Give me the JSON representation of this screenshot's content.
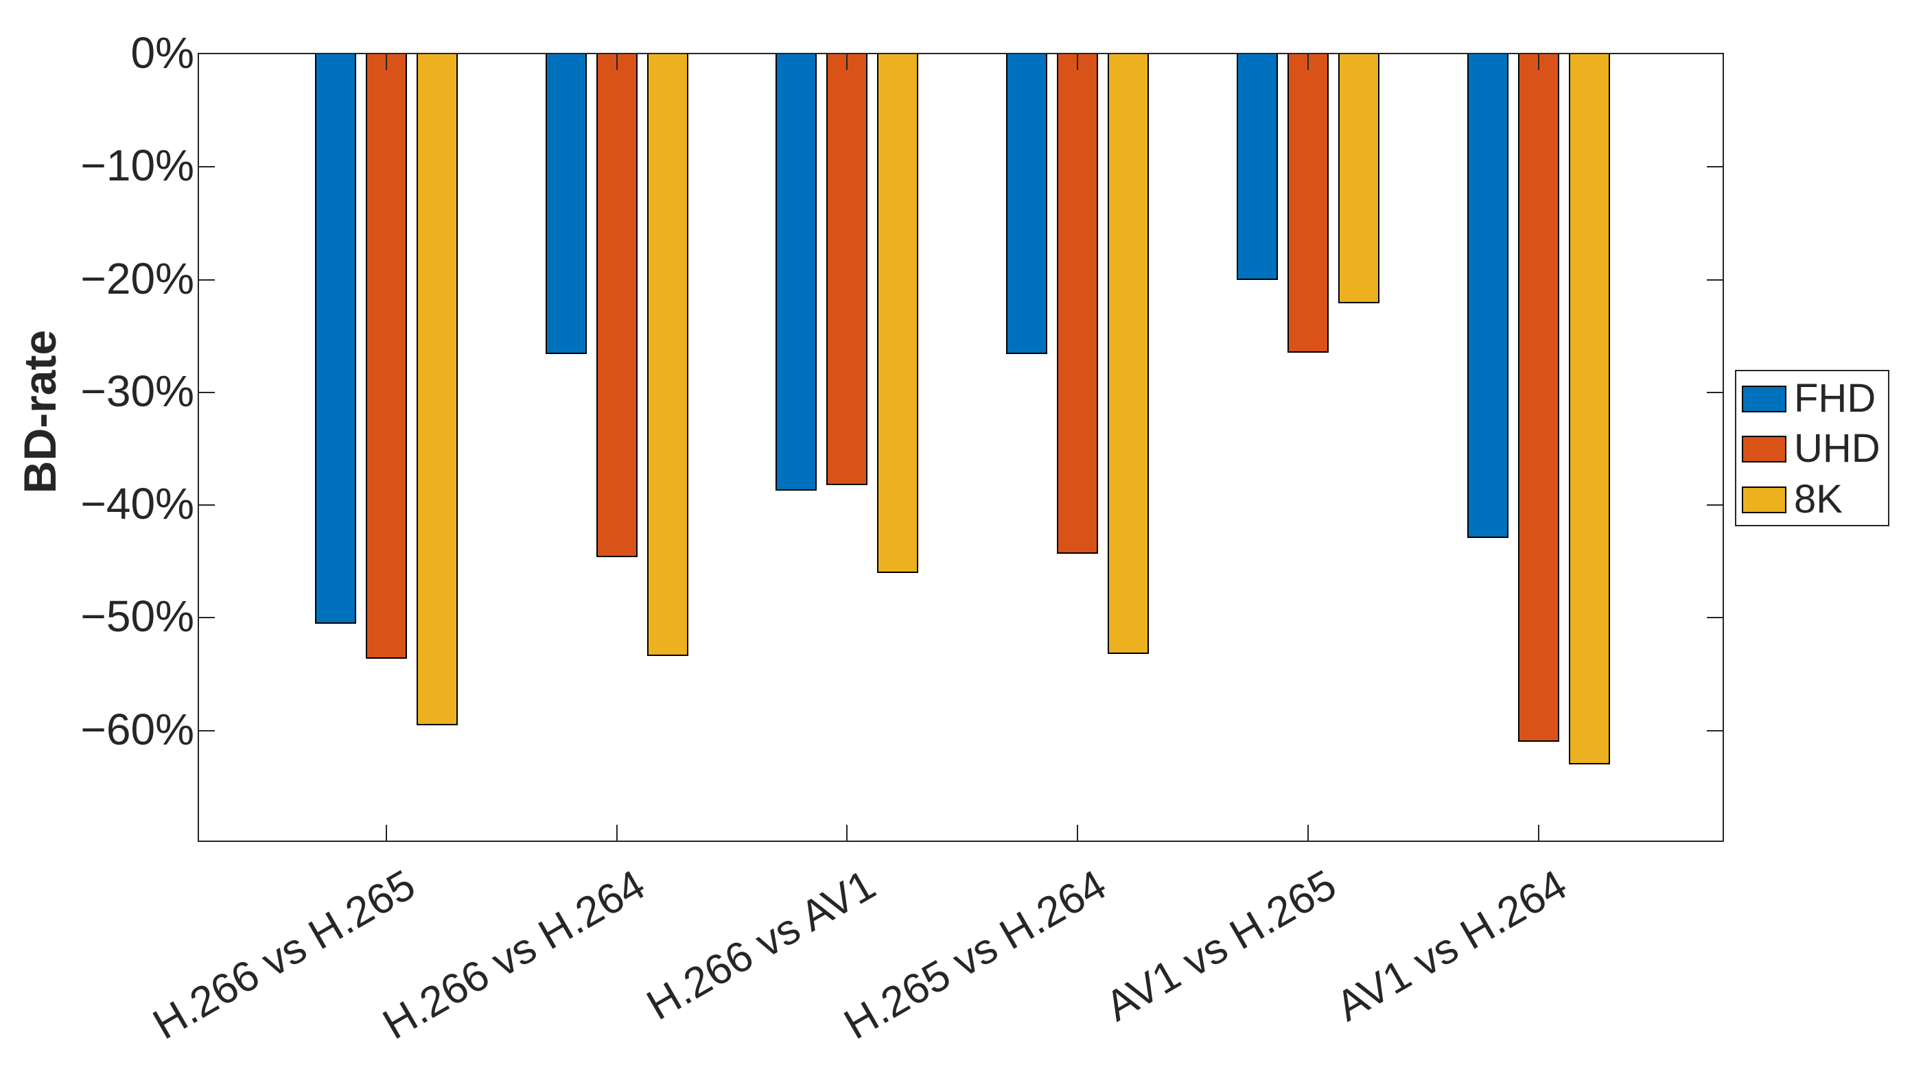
{
  "chart_data": {
    "type": "bar",
    "title": "",
    "ylabel": "BD-rate",
    "xlabel": "",
    "categories": [
      "H.266 vs H.265",
      "H.266 vs H.264",
      "H.266 vs AV1",
      "H.265 vs H.264",
      "AV1 vs H.265",
      "AV1 vs H.264"
    ],
    "series": [
      {
        "name": "FHD",
        "color": "#0072BD",
        "values": [
          -50.5,
          -26.6,
          -38.7,
          -26.6,
          -20.0,
          -42.9
        ]
      },
      {
        "name": "UHD",
        "color": "#D95319",
        "values": [
          -53.6,
          -44.6,
          -38.2,
          -44.3,
          -26.5,
          -61.0
        ]
      },
      {
        "name": "8K",
        "color": "#EDB120",
        "values": [
          -59.5,
          -53.4,
          -46.0,
          -53.2,
          -22.1,
          -63.0
        ]
      }
    ],
    "y_ticks": [
      "0%",
      "−10%",
      "−20%",
      "−30%",
      "−40%",
      "−50%",
      "−60%"
    ],
    "ylim": [
      -70,
      0
    ],
    "grid": false,
    "legend_position": "right-outside",
    "axis_color": "#262626",
    "bar_edge_color": "#000000"
  }
}
